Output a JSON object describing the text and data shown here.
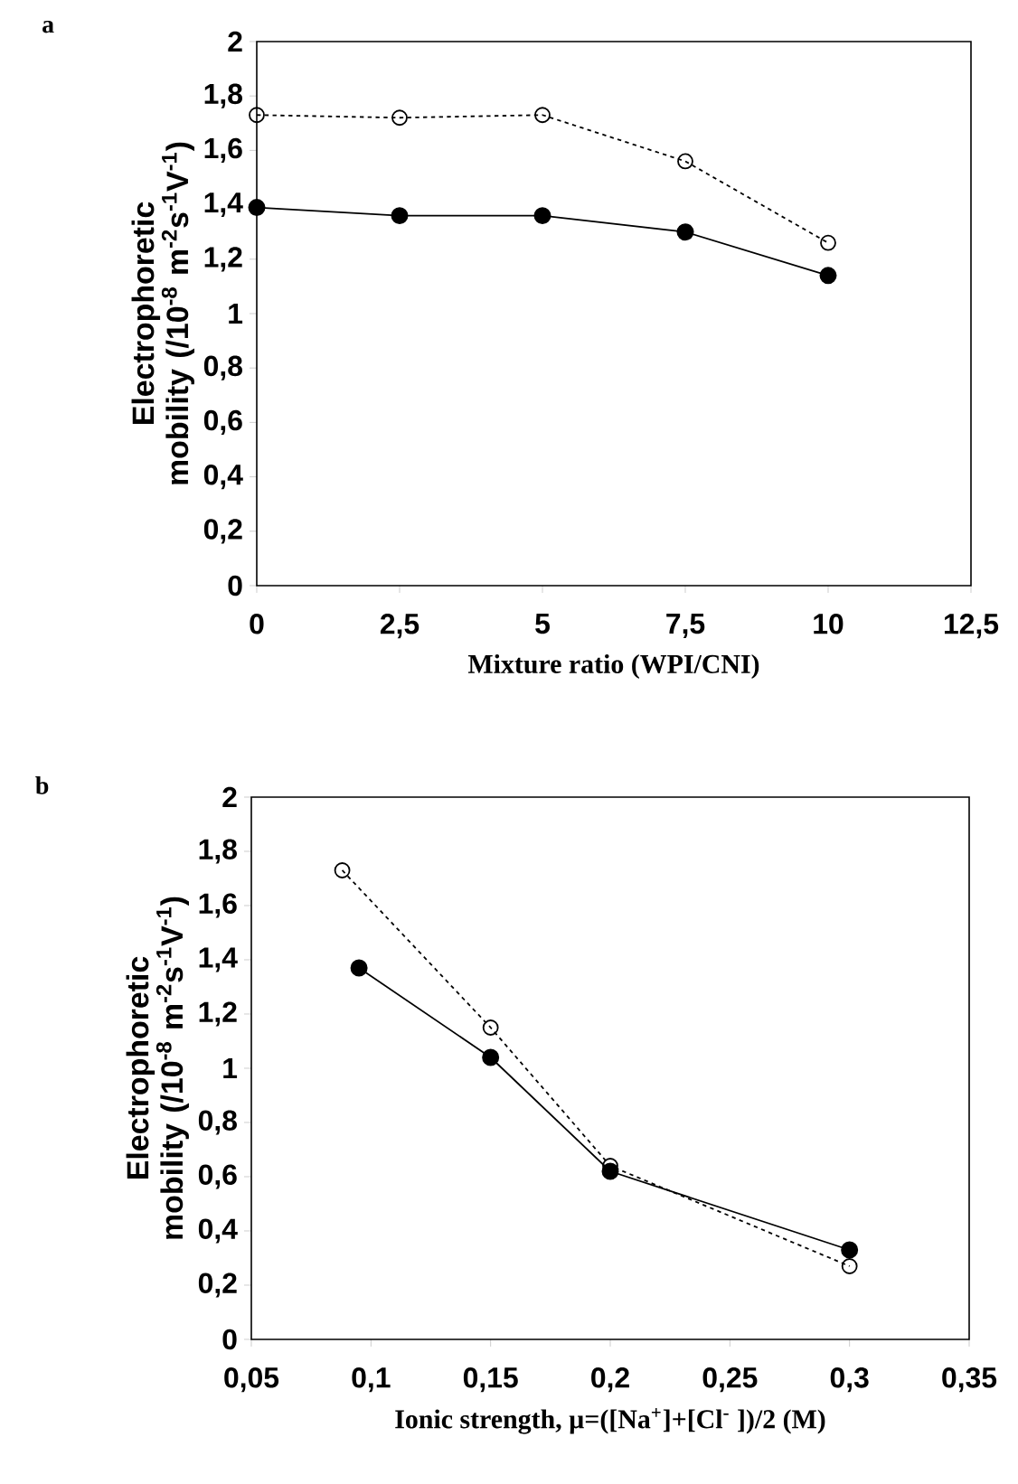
{
  "chart_data": [
    {
      "type": "line",
      "title": "a",
      "xlabel": "Mixture ratio (WPI/CNI)",
      "ylabel": "Electrophoretic mobility (/10$^{-8}$ m$^{-2}$s$^{-1}$V$^{-1}$)",
      "xlim": [
        0,
        12.5
      ],
      "xticks": [
        0,
        {
          "value": 2.5,
          "label": "2,5"
        },
        5,
        {
          "value": 7.5,
          "label": "7,5"
        },
        10,
        {
          "value": 12.5,
          "label": "12,5"
        }
      ],
      "ylim": [
        0,
        2
      ],
      "yticks": [
        0,
        {
          "value": 0.2,
          "label": "0,2"
        },
        {
          "value": 0.4,
          "label": "0,4"
        },
        {
          "value": 0.6,
          "label": "0,6"
        },
        {
          "value": 0.8,
          "label": "0,8"
        },
        1,
        {
          "value": 1.2,
          "label": "1,2"
        },
        {
          "value": 1.4,
          "label": "1,4"
        },
        {
          "value": 1.6,
          "label": "1,6"
        },
        {
          "value": 1.8,
          "label": "1,8"
        },
        2
      ],
      "grid": false,
      "marker": "circle",
      "series": [
        {
          "x": [
            0,
            2.5,
            5,
            7.5,
            10
          ],
          "values": [
            1.39,
            1.36,
            1.36,
            1.3,
            1.14
          ],
          "color": "#000000",
          "line_style": "solid"
        },
        {
          "x": [
            0,
            2.5,
            5,
            7.5,
            10
          ],
          "values": [
            1.73,
            1.72,
            1.73,
            1.56,
            1.26
          ],
          "color": "#000000",
          "line_style": "dashed"
        }
      ]
    },
    {
      "type": "line",
      "title": "b",
      "xlabel": "Ionic strength, µ=([Na$^{+}$]+[Cl$^{-}$ ])/2 (M)",
      "ylabel": "Electrophoretic mobility (/10$^{-8}$ m$^{-2}$s$^{-1}$V$^{-1}$)",
      "xlim": [
        0.05,
        0.35
      ],
      "xticks": [
        {
          "value": 0.05,
          "label": "0,05"
        },
        {
          "value": 0.1,
          "label": "0,1"
        },
        {
          "value": 0.15,
          "label": "0,15"
        },
        {
          "value": 0.2,
          "label": "0,2"
        },
        {
          "value": 0.25,
          "label": "0,25"
        },
        {
          "value": 0.3,
          "label": "0,3"
        },
        {
          "value": 0.35,
          "label": "0,35"
        }
      ],
      "ylim": [
        0,
        2
      ],
      "yticks": [
        0,
        {
          "value": 0.2,
          "label": "0,2"
        },
        {
          "value": 0.4,
          "label": "0,4"
        },
        {
          "value": 0.6,
          "label": "0,6"
        },
        {
          "value": 0.8,
          "label": "0,8"
        },
        1,
        {
          "value": 1.2,
          "label": "1,2"
        },
        {
          "value": 1.4,
          "label": "1,4"
        },
        {
          "value": 1.6,
          "label": "1,6"
        },
        {
          "value": 1.8,
          "label": "1,8"
        },
        2
      ],
      "grid": false,
      "marker": "circle",
      "series": [
        {
          "x": [
            0.095,
            0.15,
            0.2,
            0.3
          ],
          "values": [
            1.37,
            1.04,
            0.62,
            0.33
          ],
          "color": "#000000",
          "line_style": "solid"
        },
        {
          "x": [
            0.088,
            0.15,
            0.2,
            0.3
          ],
          "values": [
            1.73,
            1.15,
            0.64,
            0.27
          ],
          "color": "#000000",
          "line_style": "dashed"
        }
      ]
    }
  ]
}
